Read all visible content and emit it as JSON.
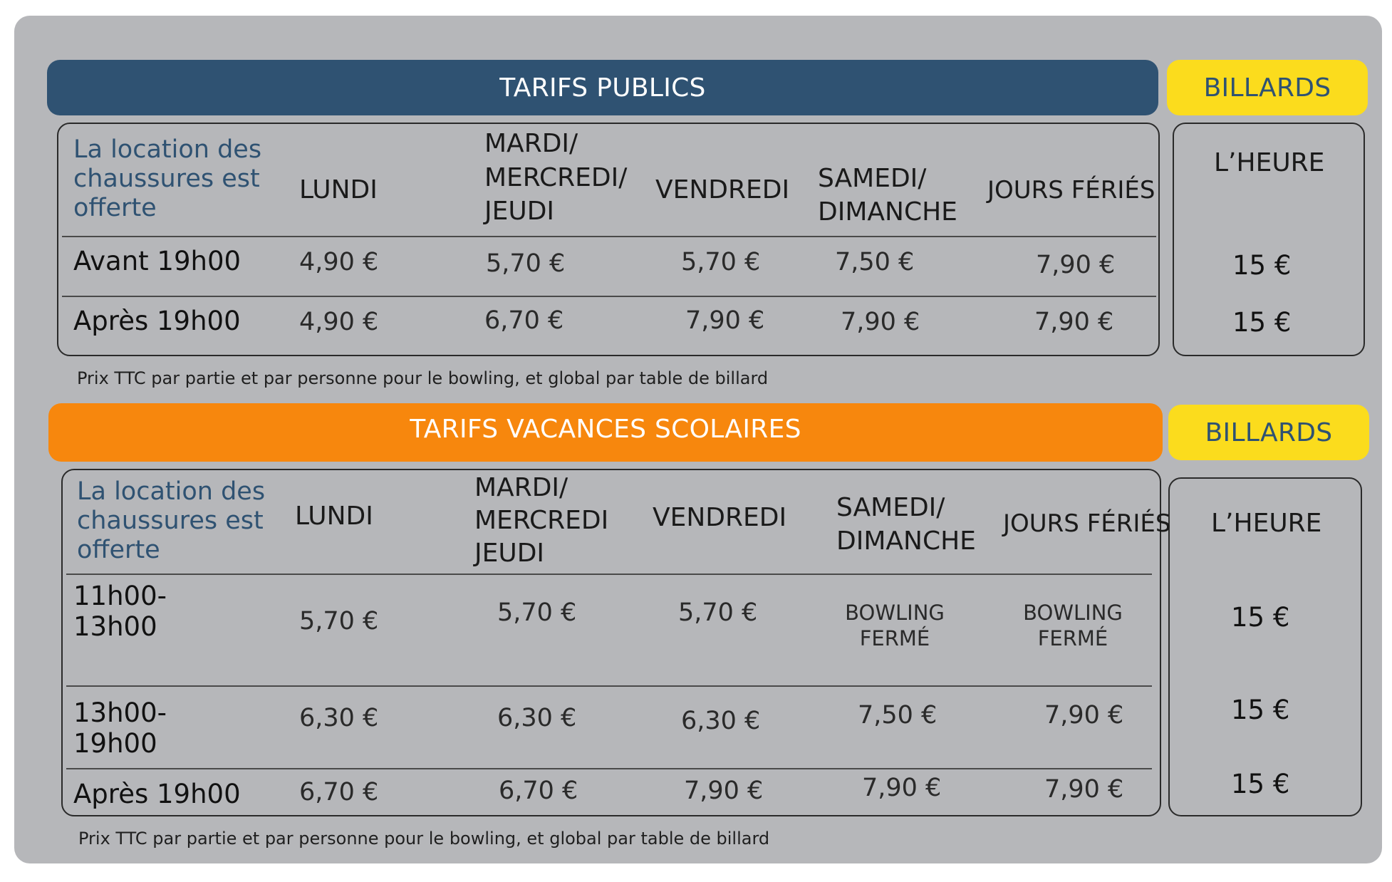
{
  "colors": {
    "card_bg": "#b6b7ba",
    "public_bar": "#2f5272",
    "holiday_bar": "#f7870d",
    "billiard_bar": "#fbdc1d",
    "note_text": "#2f5272"
  },
  "public": {
    "title": "TARIFS PUBLICS",
    "billiards_title": "BILLARDS",
    "note": [
      "La location des",
      "chaussures est",
      "offerte"
    ],
    "headers": {
      "lundi": "LUNDI",
      "mardi": [
        "MARDI/",
        "MERCREDI/",
        "JEUDI"
      ],
      "vendredi": "VENDREDI",
      "samedi": [
        "SAMEDI/",
        "DIMANCHE"
      ],
      "feries": "JOURS FÉRIÉS"
    },
    "billiards_header": "L’HEURE",
    "rows": [
      {
        "label": "Avant 19h00",
        "lundi": "4,90 €",
        "mardi": "5,70 €",
        "vendredi": "5,70 €",
        "samedi": "7,50 €",
        "feries": "7,90 €",
        "billiards": "15 €"
      },
      {
        "label": "Après 19h00",
        "lundi": "4,90 €",
        "mardi": "6,70 €",
        "vendredi": "7,90 €",
        "samedi": "7,90 €",
        "feries": "7,90 €",
        "billiards": "15 €"
      }
    ],
    "footnote": "Prix TTC par partie et par personne pour le bowling, et global par table de billard"
  },
  "holidays": {
    "title": "TARIFS VACANCES SCOLAIRES",
    "billiards_title": "BILLARDS",
    "note": [
      "La location des",
      "chaussures est",
      "offerte"
    ],
    "headers": {
      "lundi": "LUNDI",
      "mardi": [
        "MARDI/",
        "MERCREDI",
        "JEUDI"
      ],
      "vendredi": "VENDREDI",
      "samedi": [
        "SAMEDI/",
        "DIMANCHE"
      ],
      "feries": "JOURS FÉRIÉS"
    },
    "billiards_header": "L’HEURE",
    "rows": [
      {
        "label": [
          "11h00-",
          "13h00"
        ],
        "lundi": "5,70 €",
        "mardi": "5,70 €",
        "vendredi": "5,70 €",
        "samedi": [
          "BOWLING",
          "FERMÉ"
        ],
        "feries": [
          "BOWLING",
          "FERMÉ"
        ],
        "billiards": "15 €"
      },
      {
        "label": [
          "13h00-",
          "19h00"
        ],
        "lundi": "6,30 €",
        "mardi": "6,30 €",
        "vendredi": "6,30 €",
        "samedi": "7,50 €",
        "feries": "7,90 €",
        "billiards": "15 €"
      },
      {
        "label": "Après 19h00",
        "lundi": "6,70 €",
        "mardi": "6,70 €",
        "vendredi": "7,90 €",
        "samedi": "7,90 €",
        "feries": "7,90 €",
        "billiards": "15 €"
      }
    ],
    "footnote": "Prix TTC par partie et par personne pour le bowling, et global par table de billard"
  }
}
